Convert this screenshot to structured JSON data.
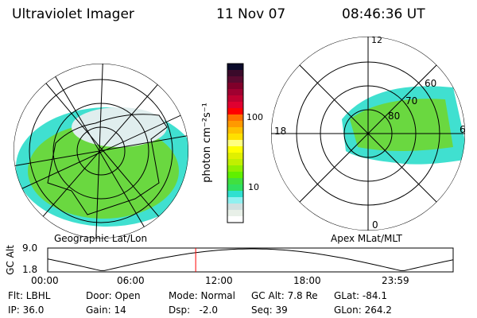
{
  "header": {
    "instrument": "Ultraviolet Imager",
    "date": "11 Nov 07",
    "time": "08:46:36 UT"
  },
  "left_plot": {
    "label": "Geographic Lat/Lon"
  },
  "right_plot": {
    "label": "Apex MLat/MLT",
    "mlt_labels": [
      "12",
      "18",
      "6",
      "0"
    ],
    "lat_labels": [
      "60",
      "70",
      "80"
    ]
  },
  "colorbar": {
    "unit_label": "photon cm⁻²s⁻¹",
    "ticks": [
      "100",
      "10"
    ],
    "colors": [
      "#0a0a2a",
      "#3a0a2a",
      "#5a0a30",
      "#80002a",
      "#a00030",
      "#c00030",
      "#e00030",
      "#ff0000",
      "#ff7000",
      "#ff9900",
      "#ffc000",
      "#ffe000",
      "#ffff80",
      "#ffff00",
      "#e0f000",
      "#c0f000",
      "#90f000",
      "#60f000",
      "#40e040",
      "#30e060",
      "#30e0d0",
      "#90f0f0",
      "#d0e0e0",
      "#e8f0e8",
      "#ffffff"
    ]
  },
  "altitude": {
    "ylabel": "GC Alt",
    "ymax": "9.0",
    "ymin": "1.8",
    "xticks": [
      "00:00",
      "06:00",
      "12:00",
      "18:00",
      "23:59"
    ],
    "current_time_fraction": 0.365,
    "marker_color": "#ff0000"
  },
  "status": [
    {
      "k": "Flt:",
      "v": "LBHL"
    },
    {
      "k": "Door:",
      "v": "Open"
    },
    {
      "k": "Mode:",
      "v": "Normal"
    },
    {
      "k": "GC Alt:",
      "v": "7.8 Re"
    },
    {
      "k": "GLat:",
      "v": "-84.1"
    },
    {
      "k": "IP:",
      "v": "36.0"
    },
    {
      "k": "Gain:",
      "v": "14"
    },
    {
      "k": "Dsp:",
      "v": "  -2.0"
    },
    {
      "k": "Seq:",
      "v": "39"
    },
    {
      "k": "GLon:",
      "v": "264.2"
    }
  ]
}
